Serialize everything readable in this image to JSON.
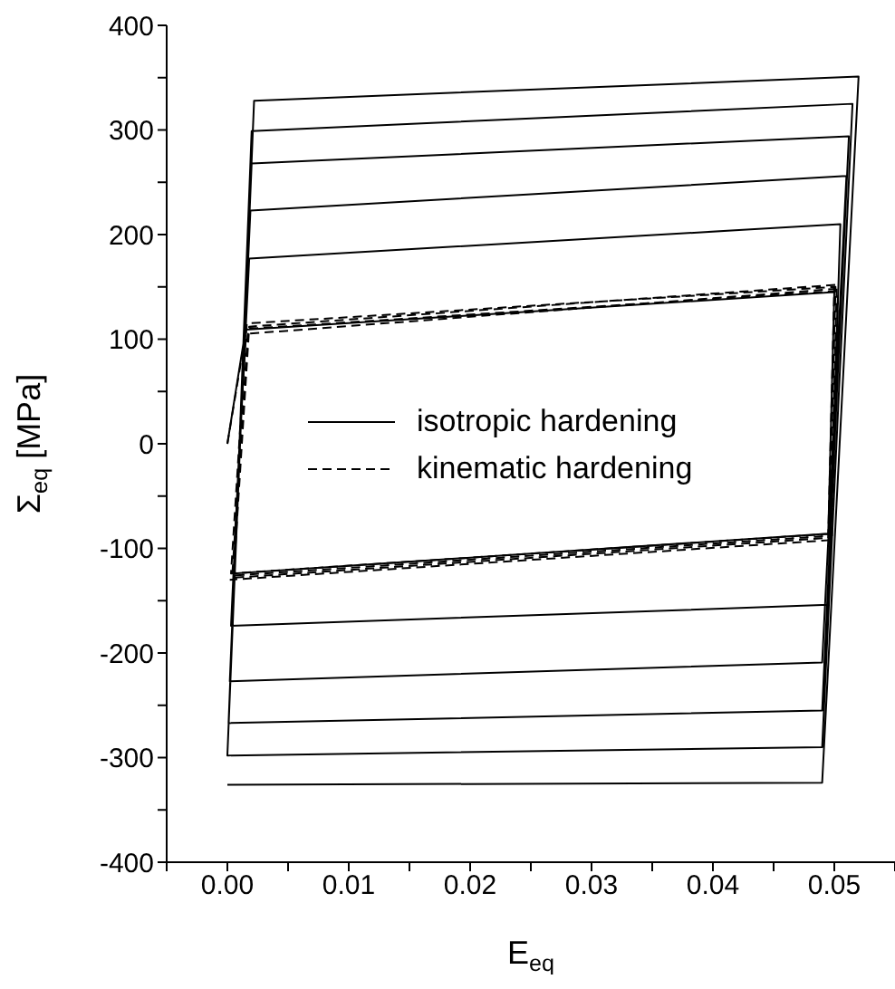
{
  "chart_data": {
    "type": "line",
    "xlabel": "E$_{eq}$",
    "ylabel": "Σ$_{eq}$ [MPa]",
    "xlim": [
      -0.005,
      0.055
    ],
    "ylim": [
      -400,
      400
    ],
    "xticks": [
      {
        "value": -0.005,
        "label": null
      },
      {
        "value": 0,
        "label": "0.00"
      },
      {
        "value": 0.005,
        "label": null
      },
      {
        "value": 0.01,
        "label": "0.01"
      },
      {
        "value": 0.015,
        "label": null
      },
      {
        "value": 0.02,
        "label": "0.02"
      },
      {
        "value": 0.025,
        "label": null
      },
      {
        "value": 0.03,
        "label": "0.03"
      },
      {
        "value": 0.035,
        "label": null
      },
      {
        "value": 0.04,
        "label": "0.04"
      },
      {
        "value": 0.045,
        "label": null
      },
      {
        "value": 0.05,
        "label": "0.05"
      },
      {
        "value": 0.055,
        "label": null
      }
    ],
    "yticks": [
      -400,
      {
        "value": -350,
        "label": null
      },
      -300,
      {
        "value": -250,
        "label": null
      },
      -200,
      {
        "value": -150,
        "label": null
      },
      -100,
      {
        "value": -50,
        "label": null
      },
      0,
      {
        "value": 50,
        "label": null
      },
      100,
      {
        "value": 150,
        "label": null
      },
      200,
      {
        "value": 250,
        "label": null
      },
      300,
      {
        "value": 350,
        "label": null
      },
      400
    ],
    "legend": "center",
    "marker": "none",
    "series": [
      {
        "name": "isotropic hardening",
        "color": "#000000",
        "line_style": "solid",
        "x": [
          0,
          0.0015,
          0.05,
          0.0495,
          0.0005,
          0.0018,
          0.0505,
          0.0495,
          0.0003,
          0.0019,
          0.051,
          0.049,
          0.0002,
          0.002,
          0.0512,
          0.049,
          0.0001,
          0.002,
          0.0515,
          0.049,
          0,
          0.0022,
          0.052,
          0.049,
          0
        ],
        "values": [
          0,
          109,
          145,
          -86,
          -124,
          177,
          210,
          -154,
          -174,
          223,
          256,
          -209,
          -227,
          268,
          294,
          -255,
          -267,
          299,
          325,
          -290,
          -298,
          328,
          351,
          -324,
          -326
        ]
      },
      {
        "name": "kinematic hardening",
        "color": "#000000",
        "line_style": "dashed",
        "x": [
          0,
          0.0015,
          0.05,
          0.0495,
          0.0005,
          0.0018,
          0.0502,
          0.0497,
          0.0003,
          0.0016,
          0.0501,
          0.0496,
          0.0004,
          0.0017,
          0.0503,
          0.0498,
          0.0002
        ],
        "values": [
          0,
          105,
          148,
          -90,
          -128,
          112,
          152,
          -86,
          -124,
          115,
          150,
          -88,
          -126,
          110,
          146,
          -92,
          -130
        ]
      }
    ]
  }
}
